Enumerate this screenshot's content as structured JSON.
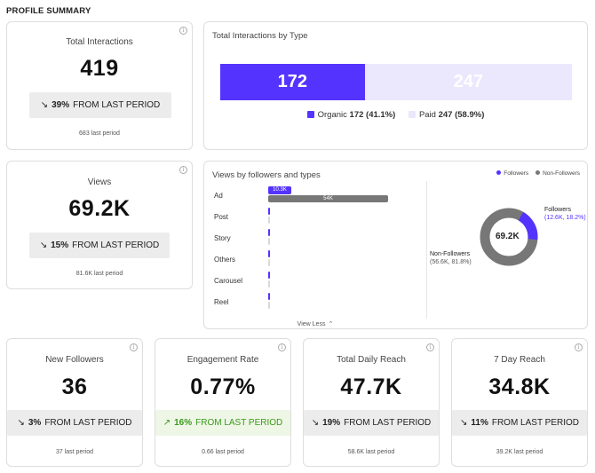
{
  "section_title": "PROFILE SUMMARY",
  "info_glyph": "i",
  "total_interactions": {
    "label": "Total Interactions",
    "value": "419",
    "delta_pct": "39%",
    "delta_text": "FROM LAST PERIOD",
    "direction": "down",
    "last_period": "683 last period"
  },
  "interactions_by_type": {
    "title": "Total Interactions by Type",
    "organic": {
      "name": "Organic",
      "value": "172",
      "share": "(41.1%)",
      "color": "#5533ff"
    },
    "paid": {
      "name": "Paid",
      "value": "247",
      "share": "(58.9%)",
      "color": "#ebe8fd"
    }
  },
  "views": {
    "label": "Views",
    "value": "69.2K",
    "delta_pct": "15%",
    "delta_text": "FROM LAST PERIOD",
    "direction": "down",
    "last_period": "81.6K last period"
  },
  "views_by_followers": {
    "title": "Views by followers and types",
    "legend": {
      "followers": "Followers",
      "non_followers": "Non-Followers"
    },
    "colors": {
      "followers": "#5533ff",
      "non_followers": "#777777"
    },
    "rows": [
      {
        "label": "Ad",
        "followers": 10.3,
        "non_followers": 54,
        "followers_tag": "10.3K",
        "non_followers_tag": "54K"
      },
      {
        "label": "Post",
        "followers": 0.8,
        "non_followers": 0.9
      },
      {
        "label": "Story",
        "followers": 0.6,
        "non_followers": 0.3
      },
      {
        "label": "Others",
        "followers": 0.1,
        "non_followers": 0.4
      },
      {
        "label": "Carousel",
        "followers": 0.1,
        "non_followers": 0.2
      },
      {
        "label": "Reel",
        "followers": 0.1,
        "non_followers": 0.1
      }
    ],
    "view_less": "View Less",
    "donut": {
      "center": "69.2K",
      "followers_label": "Followers",
      "followers_detail": "(12.6K, 18.2%)",
      "followers_share": 18.2,
      "non_followers_label": "Non-Followers",
      "non_followers_detail": "(56.6K, 81.8%)"
    }
  },
  "kpis": [
    {
      "label": "New Followers",
      "value": "36",
      "delta_pct": "3%",
      "delta_text": "FROM LAST PERIOD",
      "direction": "down",
      "last_period": "37 last period"
    },
    {
      "label": "Engagement Rate",
      "value": "0.77%",
      "delta_pct": "16%",
      "delta_text": "FROM LAST PERIOD",
      "direction": "up",
      "last_period": "0.66 last period"
    },
    {
      "label": "Total Daily Reach",
      "value": "47.7K",
      "delta_pct": "19%",
      "delta_text": "FROM LAST PERIOD",
      "direction": "down",
      "last_period": "58.6K last period"
    },
    {
      "label": "7 Day Reach",
      "value": "34.8K",
      "delta_pct": "11%",
      "delta_text": "FROM LAST PERIOD",
      "direction": "down",
      "last_period": "39.2K last period"
    }
  ],
  "arrows": {
    "down": "↘",
    "up": "↗"
  }
}
